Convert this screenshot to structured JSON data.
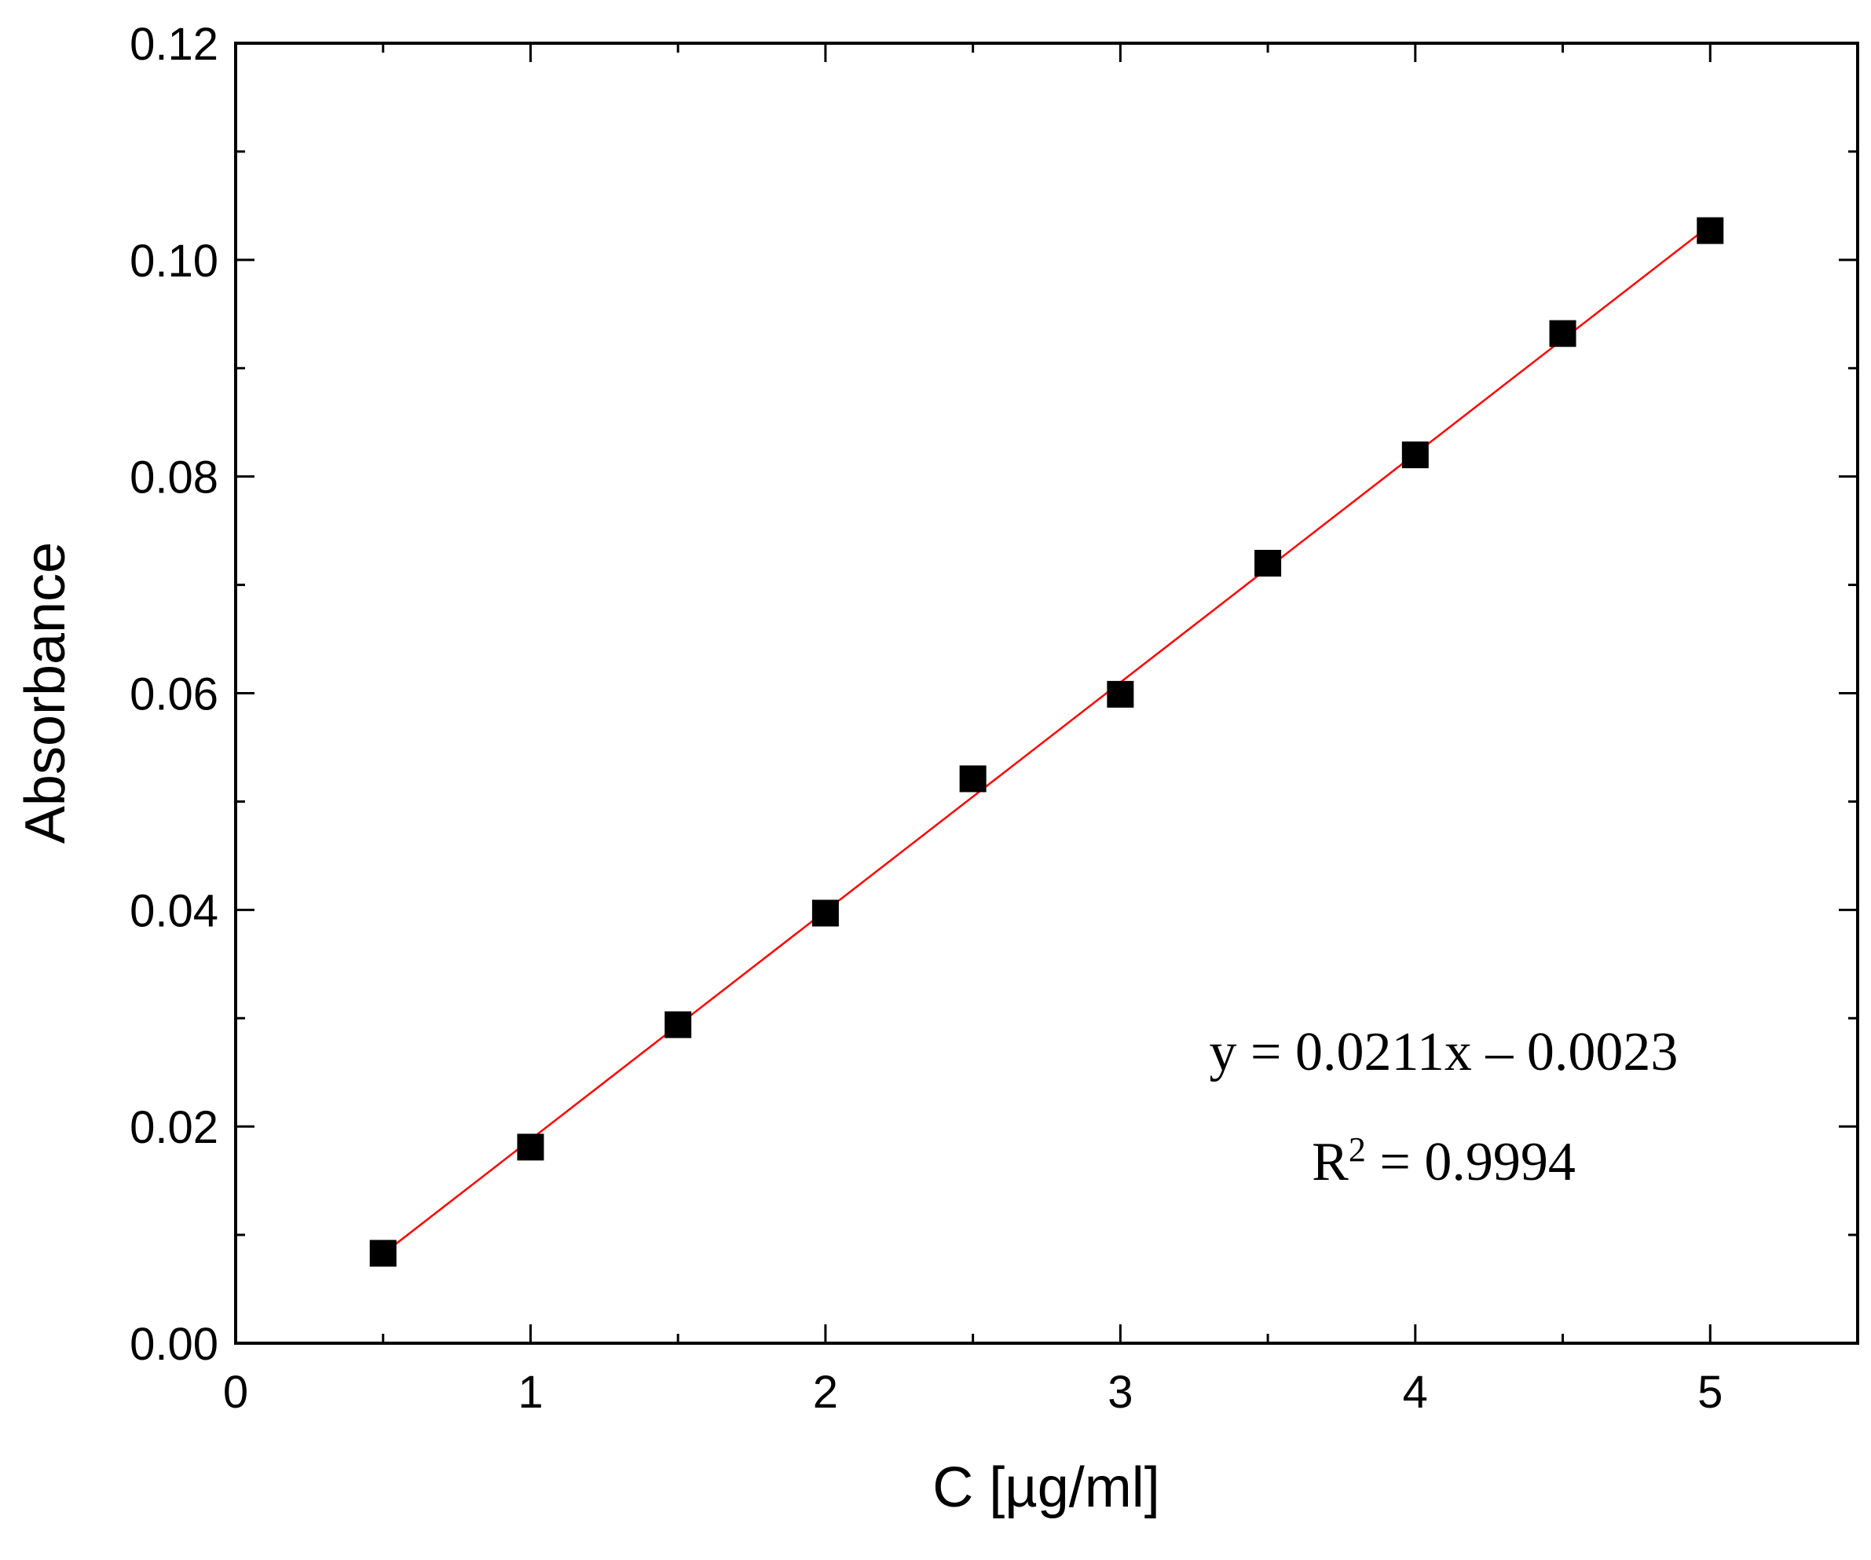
{
  "chart_data": {
    "type": "scatter",
    "title": "",
    "xlabel": "C [µg/ml]",
    "ylabel": "Absorbance",
    "xlim": [
      0,
      5.5
    ],
    "ylim": [
      0,
      0.12
    ],
    "x_ticks": [
      "0",
      "1",
      "2",
      "3",
      "4",
      "5"
    ],
    "y_ticks": [
      "0.00",
      "0.02",
      "0.04",
      "0.06",
      "0.08",
      "0.10",
      "0.12"
    ],
    "grid": false,
    "series": [
      {
        "x": [
          0.5,
          1.0,
          1.5,
          2.0,
          2.5,
          3.0,
          3.5,
          4.0,
          4.5,
          5.0
        ],
        "y": [
          0.0083,
          0.0181,
          0.0294,
          0.0397,
          0.0521,
          0.0599,
          0.072,
          0.082,
          0.0932,
          0.1027
        ],
        "marker": "square",
        "color": "#000000"
      }
    ],
    "fit": {
      "slope": 0.0211,
      "intercept": -0.0023,
      "x_range": [
        0.5,
        5.0
      ],
      "color": "#ff0000"
    },
    "annotations": {
      "equation": "y = 0.0211x – 0.0023",
      "r2_base": "R",
      "r2_sup": "2",
      "r2_value": " = 0.9994"
    }
  }
}
